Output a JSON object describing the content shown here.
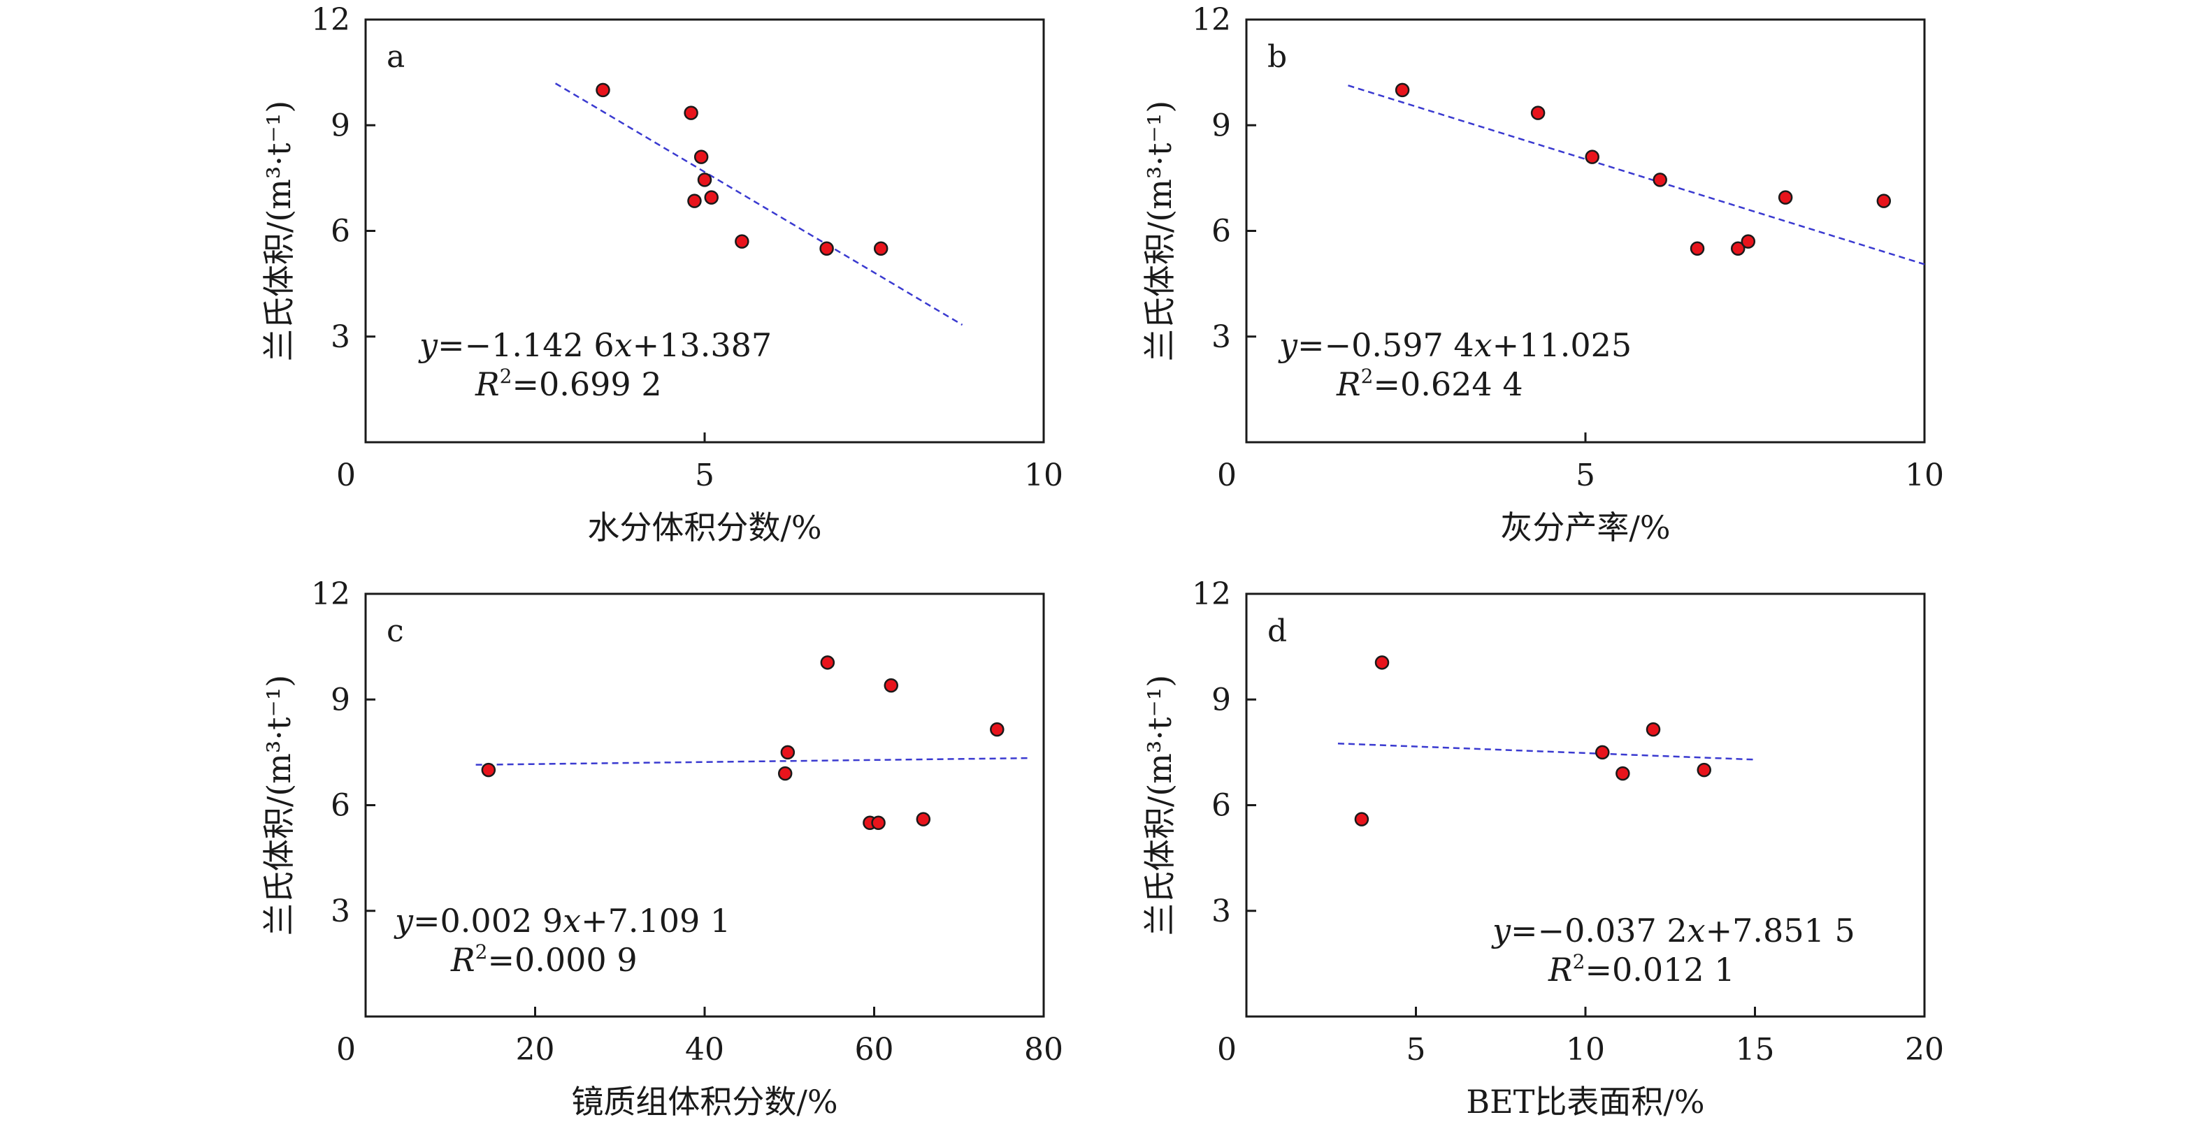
{
  "chart_data": [
    {
      "type": "scatter",
      "panel": "a",
      "xlabel": "水分体积分数/%",
      "ylabel": "兰氏体积/(m³·t⁻¹)",
      "xlim": [
        0,
        10
      ],
      "ylim": [
        0,
        12
      ],
      "xticks": [
        "0",
        "5",
        "10"
      ],
      "yticks": [
        "3",
        "6",
        "9",
        "12"
      ],
      "points": [
        {
          "x": 3.5,
          "y": 10.0
        },
        {
          "x": 4.8,
          "y": 9.35
        },
        {
          "x": 4.95,
          "y": 8.1
        },
        {
          "x": 5.0,
          "y": 7.45
        },
        {
          "x": 4.85,
          "y": 6.85
        },
        {
          "x": 5.1,
          "y": 6.95
        },
        {
          "x": 5.55,
          "y": 5.7
        },
        {
          "x": 6.8,
          "y": 5.5
        },
        {
          "x": 7.6,
          "y": 5.5
        }
      ],
      "fit": {
        "slope": -1.1426,
        "intercept": 13.387,
        "xrange": [
          2.8,
          8.8
        ]
      },
      "equation": {
        "y": "y",
        "rest": "=−1.142 6",
        "x": "x",
        "rest2": "+13.387"
      },
      "r2": {
        "R": "R",
        "sup": "2",
        "rest": "=0.699 2"
      }
    },
    {
      "type": "scatter",
      "panel": "b",
      "xlabel": "灰分产率/%",
      "ylabel": "兰氏体积/(m³·t⁻¹)",
      "xlim": [
        0,
        10
      ],
      "ylim": [
        0,
        12
      ],
      "xticks": [
        "0",
        "5",
        "10"
      ],
      "yticks": [
        "3",
        "6",
        "9",
        "12"
      ],
      "points": [
        {
          "x": 2.3,
          "y": 10.0
        },
        {
          "x": 4.3,
          "y": 9.35
        },
        {
          "x": 5.1,
          "y": 8.1
        },
        {
          "x": 6.1,
          "y": 7.45
        },
        {
          "x": 6.65,
          "y": 5.5
        },
        {
          "x": 7.25,
          "y": 5.5
        },
        {
          "x": 7.4,
          "y": 5.7
        },
        {
          "x": 7.95,
          "y": 6.95
        },
        {
          "x": 9.4,
          "y": 6.85
        }
      ],
      "fit": {
        "slope": -0.5974,
        "intercept": 11.025,
        "xrange": [
          1.5,
          10.0
        ]
      },
      "equation": {
        "y": "y",
        "rest": "=−0.597 4",
        "x": "x",
        "rest2": "+11.025"
      },
      "r2": {
        "R": "R",
        "sup": "2",
        "rest": "=0.624 4"
      }
    },
    {
      "type": "scatter",
      "panel": "c",
      "xlabel": "镜质组体积分数/%",
      "ylabel": "兰氏体积/(m³·t⁻¹)",
      "xlim": [
        0,
        80
      ],
      "ylim": [
        0,
        12
      ],
      "xticks": [
        "0",
        "20",
        "40",
        "60",
        "80"
      ],
      "yticks": [
        "3",
        "6",
        "9",
        "12"
      ],
      "points": [
        {
          "x": 14.5,
          "y": 7.0
        },
        {
          "x": 49.5,
          "y": 6.9
        },
        {
          "x": 49.8,
          "y": 7.5
        },
        {
          "x": 54.5,
          "y": 10.05
        },
        {
          "x": 59.5,
          "y": 5.5
        },
        {
          "x": 60.5,
          "y": 5.5
        },
        {
          "x": 62.0,
          "y": 9.4
        },
        {
          "x": 65.8,
          "y": 5.6
        },
        {
          "x": 74.5,
          "y": 8.15
        }
      ],
      "fit": {
        "slope": 0.0029,
        "intercept": 7.1091,
        "xrange": [
          13.0,
          78.5
        ]
      },
      "equation": {
        "y": "y",
        "rest": "=0.002 9",
        "x": "x",
        "rest2": "+7.109 1"
      },
      "r2": {
        "R": "R",
        "sup": "2",
        "rest": "=0.000 9"
      }
    },
    {
      "type": "scatter",
      "panel": "d",
      "xlabel": "BET比表面积/%",
      "ylabel": "兰氏体积/(m³·t⁻¹)",
      "xlim": [
        0,
        20
      ],
      "ylim": [
        0,
        12
      ],
      "xticks": [
        "0",
        "5",
        "10",
        "15",
        "20"
      ],
      "yticks": [
        "3",
        "6",
        "9",
        "12"
      ],
      "points": [
        {
          "x": 3.4,
          "y": 5.6
        },
        {
          "x": 4.0,
          "y": 10.05
        },
        {
          "x": 10.5,
          "y": 7.5
        },
        {
          "x": 11.1,
          "y": 6.9
        },
        {
          "x": 12.0,
          "y": 8.15
        },
        {
          "x": 13.5,
          "y": 7.0
        }
      ],
      "fit": {
        "slope": -0.0372,
        "intercept": 7.8515,
        "xrange": [
          2.7,
          15.0
        ]
      },
      "equation": {
        "y": "y",
        "rest": "=−0.037 2",
        "x": "x",
        "rest2": "+7.851 5"
      },
      "r2": {
        "R": "R",
        "sup": "2",
        "rest": "=0.012 1"
      }
    }
  ],
  "colors": {
    "point_fill": "#e8141c",
    "point_stroke": "#1a1a1a",
    "fit_line": "#3a3ad0",
    "axis": "#1a1a1a"
  }
}
